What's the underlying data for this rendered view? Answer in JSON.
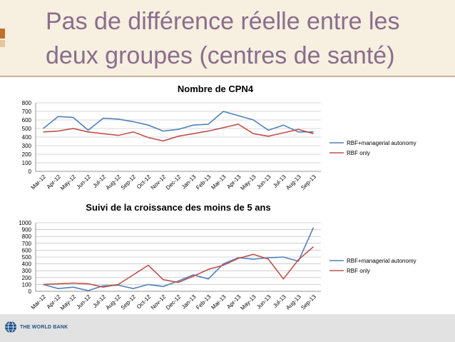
{
  "slide": {
    "title": "Pas de différence réelle entre les deux groupes (centres de santé)",
    "footer_logo_text": "THE WORLD BANK"
  },
  "colors": {
    "series_a": "#4f81bd",
    "series_b": "#c0504d",
    "title": "#8a6d8c"
  },
  "chart_data": [
    {
      "type": "line",
      "title": "Nombre de CPN4",
      "categories": [
        "Mar-12",
        "Apr-12",
        "May-12",
        "Jun-12",
        "Jul-12",
        "Aug-12",
        "Sep-12",
        "Oct-12",
        "Nov-12",
        "Dec-12",
        "Jan-13",
        "Feb-13",
        "Mar-13",
        "Apr-13",
        "May-13",
        "Jun-13",
        "Jul-13",
        "Aug-13",
        "Sep-13"
      ],
      "ylim": [
        0,
        800
      ],
      "yticks": [
        0,
        100,
        200,
        300,
        400,
        500,
        600,
        700,
        800
      ],
      "series": [
        {
          "name": "RBF+managerial autonomy",
          "values": [
            500,
            640,
            630,
            480,
            620,
            610,
            580,
            540,
            470,
            490,
            540,
            550,
            700,
            650,
            600,
            480,
            540,
            460,
            460
          ]
        },
        {
          "name": "RBF only",
          "values": [
            460,
            470,
            500,
            460,
            440,
            420,
            460,
            395,
            355,
            410,
            440,
            470,
            510,
            550,
            440,
            410,
            450,
            490,
            440
          ]
        }
      ]
    },
    {
      "type": "line",
      "title": "Suivi de la croissance des moins de 5 ans",
      "categories": [
        "Mar-12",
        "Apr-12",
        "May-12",
        "Jun-12",
        "Jul-12",
        "Aug-12",
        "Sep-12",
        "Oct-12",
        "Nov-12",
        "Dec-12",
        "Jan-13",
        "Feb-13",
        "Mar-13",
        "Apr-13",
        "May-13",
        "Jun-13",
        "Jul-13",
        "Aug-13",
        "Sep-13"
      ],
      "ylim": [
        0,
        1000
      ],
      "yticks": [
        0,
        100,
        200,
        300,
        400,
        500,
        600,
        700,
        800,
        900,
        1000
      ],
      "series": [
        {
          "name": "RBF+managerial autonomy",
          "values": [
            100,
            40,
            60,
            10,
            80,
            90,
            40,
            100,
            70,
            150,
            240,
            180,
            400,
            490,
            470,
            490,
            500,
            440,
            930
          ]
        },
        {
          "name": "RBF only",
          "values": [
            100,
            110,
            120,
            110,
            60,
            100,
            240,
            380,
            170,
            130,
            220,
            320,
            380,
            480,
            540,
            470,
            180,
            460,
            650
          ]
        }
      ]
    }
  ]
}
